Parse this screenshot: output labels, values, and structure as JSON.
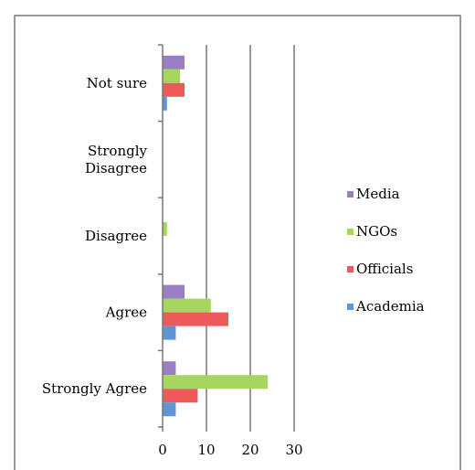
{
  "chart_data": {
    "type": "bar",
    "orientation": "horizontal",
    "categories": [
      "Not sure",
      "Strongly Disagree",
      "Disagree",
      "Agree",
      "Strongly Agree"
    ],
    "category_label_lines": [
      [
        "Not sure"
      ],
      [
        "Strongly",
        "Disagree"
      ],
      [
        "Disagree"
      ],
      [
        "Agree"
      ],
      [
        "Strongly Agree"
      ]
    ],
    "series": [
      {
        "name": "Media",
        "color": "#9b7fc6",
        "values": [
          5,
          0,
          0,
          5,
          3
        ]
      },
      {
        "name": "NGOs",
        "color": "#a6d65f",
        "values": [
          4,
          0,
          1,
          11,
          24
        ]
      },
      {
        "name": "Officials",
        "color": "#ee5a59",
        "values": [
          5,
          0,
          0,
          15,
          8
        ]
      },
      {
        "name": "Academia",
        "color": "#5f95d4",
        "values": [
          1,
          0,
          0,
          3,
          3
        ]
      }
    ],
    "xlim": [
      0,
      30
    ],
    "xticks": [
      0,
      10,
      20,
      30
    ],
    "grid": true,
    "legend_position": "right",
    "title": "",
    "xlabel": "",
    "ylabel": ""
  }
}
